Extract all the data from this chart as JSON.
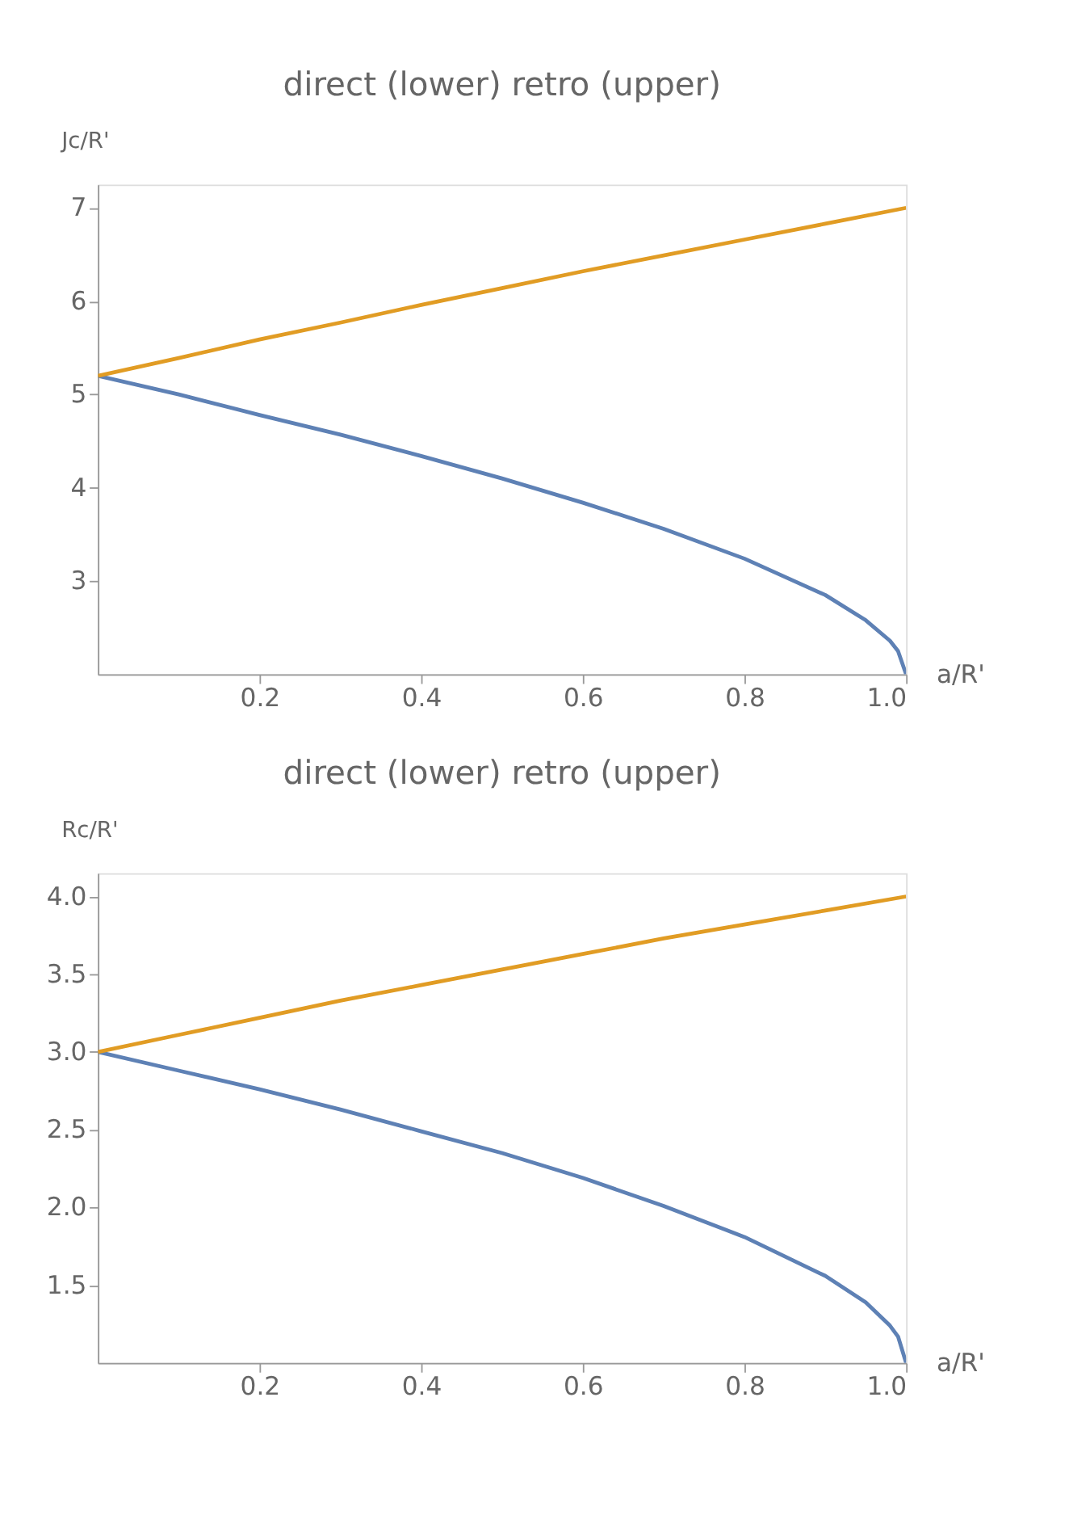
{
  "chart_data": [
    {
      "type": "line",
      "title": "direct (lower) retro (upper)",
      "xlabel": "a/R'",
      "ylabel": "Jc/R'",
      "xlim": [
        0,
        1
      ],
      "ylim": [
        2,
        7.25
      ],
      "xticks": [
        0.2,
        0.4,
        0.6,
        0.8,
        {
          "value": 1,
          "label": "1.0"
        }
      ],
      "yticks": [
        3,
        4,
        5,
        6,
        7
      ],
      "grid": false,
      "series": [
        {
          "color": "#5e81b5",
          "x": [
            0,
            0.1,
            0.2,
            0.3,
            0.4,
            0.5,
            0.6,
            0.7,
            0.8,
            0.9,
            0.95,
            0.98,
            0.99,
            1.0
          ],
          "values": [
            5.2,
            5.0,
            4.78,
            4.57,
            4.34,
            4.1,
            3.84,
            3.56,
            3.24,
            2.85,
            2.58,
            2.36,
            2.25,
            2.0
          ]
        },
        {
          "color": "#e19c24",
          "x": [
            0,
            0.1,
            0.2,
            0.3,
            0.4,
            0.5,
            0.6,
            0.7,
            0.8,
            0.9,
            1.0
          ],
          "values": [
            5.2,
            5.39,
            5.59,
            5.77,
            5.96,
            6.14,
            6.32,
            6.49,
            6.66,
            6.83,
            7.0
          ]
        }
      ]
    },
    {
      "type": "line",
      "title": "direct (lower) retro (upper)",
      "xlabel": "a/R'",
      "ylabel": "Rc/R'",
      "xlim": [
        0,
        1
      ],
      "ylim": [
        1,
        4.15
      ],
      "xticks": [
        0.2,
        0.4,
        0.6,
        0.8,
        {
          "value": 1,
          "label": "1.0"
        }
      ],
      "yticks": [
        1.5,
        {
          "value": 2,
          "label": "2.0"
        },
        2.5,
        {
          "value": 3,
          "label": "3.0"
        },
        3.5,
        {
          "value": 4,
          "label": "4.0"
        }
      ],
      "grid": false,
      "series": [
        {
          "color": "#5e81b5",
          "x": [
            0,
            0.1,
            0.2,
            0.3,
            0.4,
            0.5,
            0.6,
            0.7,
            0.8,
            0.9,
            0.95,
            0.98,
            0.99,
            1.0
          ],
          "values": [
            3.0,
            2.88,
            2.76,
            2.63,
            2.49,
            2.35,
            2.19,
            2.01,
            1.81,
            1.56,
            1.39,
            1.24,
            1.17,
            1.0
          ]
        },
        {
          "color": "#e19c24",
          "x": [
            0,
            0.1,
            0.2,
            0.3,
            0.4,
            0.5,
            0.6,
            0.7,
            0.8,
            0.9,
            1.0
          ],
          "values": [
            3.0,
            3.11,
            3.22,
            3.33,
            3.43,
            3.53,
            3.63,
            3.73,
            3.82,
            3.91,
            4.0
          ]
        }
      ]
    }
  ]
}
